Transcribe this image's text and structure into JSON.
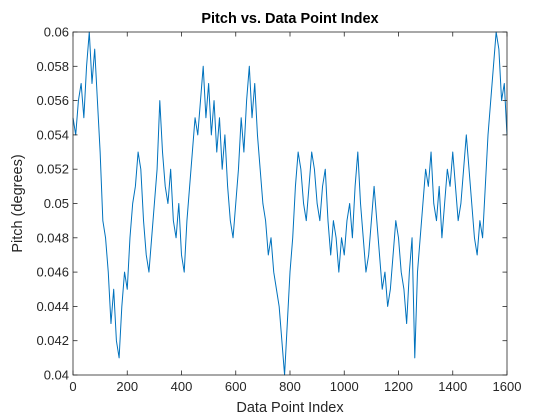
{
  "chart_data": {
    "type": "line",
    "title": "Pitch vs. Data Point Index",
    "xlabel": "Data Point Index",
    "ylabel": "Pitch (degrees)",
    "xlim": [
      0,
      1600
    ],
    "ylim": [
      0.04,
      0.06
    ],
    "x_ticks": [
      0,
      200,
      400,
      600,
      800,
      1000,
      1200,
      1400,
      1600
    ],
    "x_tick_labels": [
      "0",
      "200",
      "400",
      "600",
      "800",
      "1000",
      "1200",
      "1400",
      "1600"
    ],
    "y_ticks": [
      0.04,
      0.042,
      0.044,
      0.046,
      0.048,
      0.05,
      0.052,
      0.054,
      0.056,
      0.058,
      0.06
    ],
    "y_tick_labels": [
      "0.04",
      "0.042",
      "0.044",
      "0.046",
      "0.048",
      "0.05",
      "0.052",
      "0.054",
      "0.056",
      "0.058",
      "0.06"
    ],
    "grid": false,
    "box": true,
    "series": [
      {
        "color": "#0072BD",
        "x": [
          0,
          10,
          20,
          30,
          40,
          50,
          60,
          70,
          80,
          90,
          100,
          110,
          120,
          130,
          140,
          150,
          160,
          170,
          180,
          190,
          200,
          210,
          220,
          230,
          240,
          250,
          260,
          270,
          280,
          290,
          300,
          310,
          320,
          330,
          340,
          350,
          360,
          370,
          380,
          390,
          400,
          410,
          420,
          430,
          440,
          450,
          460,
          470,
          480,
          490,
          500,
          510,
          520,
          530,
          540,
          550,
          560,
          570,
          580,
          590,
          600,
          610,
          620,
          630,
          640,
          650,
          660,
          670,
          680,
          690,
          700,
          710,
          720,
          730,
          740,
          750,
          760,
          770,
          780,
          790,
          800,
          810,
          820,
          830,
          840,
          850,
          860,
          870,
          880,
          890,
          900,
          910,
          920,
          930,
          940,
          950,
          960,
          970,
          980,
          990,
          1000,
          1010,
          1020,
          1030,
          1040,
          1050,
          1060,
          1070,
          1080,
          1090,
          1100,
          1110,
          1120,
          1130,
          1140,
          1150,
          1160,
          1170,
          1180,
          1190,
          1200,
          1210,
          1220,
          1230,
          1240,
          1250,
          1260,
          1270,
          1280,
          1290,
          1300,
          1310,
          1320,
          1330,
          1340,
          1350,
          1360,
          1370,
          1380,
          1390,
          1400,
          1410,
          1420,
          1430,
          1440,
          1450,
          1460,
          1470,
          1480,
          1490,
          1500,
          1510,
          1520,
          1530,
          1540,
          1550,
          1560,
          1570,
          1580,
          1590,
          1600
        ],
        "y": [
          0.055,
          0.054,
          0.056,
          0.057,
          0.055,
          0.058,
          0.06,
          0.057,
          0.059,
          0.056,
          0.053,
          0.049,
          0.048,
          0.046,
          0.043,
          0.045,
          0.042,
          0.041,
          0.044,
          0.046,
          0.045,
          0.048,
          0.05,
          0.051,
          0.053,
          0.052,
          0.049,
          0.047,
          0.046,
          0.048,
          0.05,
          0.052,
          0.056,
          0.053,
          0.051,
          0.05,
          0.052,
          0.049,
          0.048,
          0.05,
          0.047,
          0.046,
          0.049,
          0.051,
          0.053,
          0.055,
          0.054,
          0.056,
          0.058,
          0.055,
          0.057,
          0.054,
          0.056,
          0.053,
          0.055,
          0.052,
          0.054,
          0.051,
          0.049,
          0.048,
          0.05,
          0.052,
          0.055,
          0.053,
          0.056,
          0.058,
          0.055,
          0.057,
          0.054,
          0.052,
          0.05,
          0.049,
          0.047,
          0.048,
          0.046,
          0.045,
          0.044,
          0.042,
          0.04,
          0.043,
          0.046,
          0.048,
          0.051,
          0.053,
          0.052,
          0.05,
          0.049,
          0.051,
          0.053,
          0.052,
          0.05,
          0.049,
          0.051,
          0.052,
          0.049,
          0.047,
          0.049,
          0.048,
          0.046,
          0.048,
          0.047,
          0.049,
          0.05,
          0.048,
          0.051,
          0.053,
          0.05,
          0.048,
          0.046,
          0.047,
          0.049,
          0.051,
          0.049,
          0.047,
          0.045,
          0.046,
          0.044,
          0.045,
          0.047,
          0.049,
          0.048,
          0.046,
          0.045,
          0.043,
          0.046,
          0.048,
          0.041,
          0.046,
          0.048,
          0.05,
          0.052,
          0.051,
          0.053,
          0.05,
          0.049,
          0.051,
          0.048,
          0.05,
          0.052,
          0.051,
          0.053,
          0.051,
          0.049,
          0.05,
          0.052,
          0.054,
          0.052,
          0.05,
          0.048,
          0.047,
          0.049,
          0.048,
          0.051,
          0.054,
          0.056,
          0.058,
          0.06,
          0.059,
          0.056,
          0.057,
          0.054
        ]
      }
    ]
  }
}
